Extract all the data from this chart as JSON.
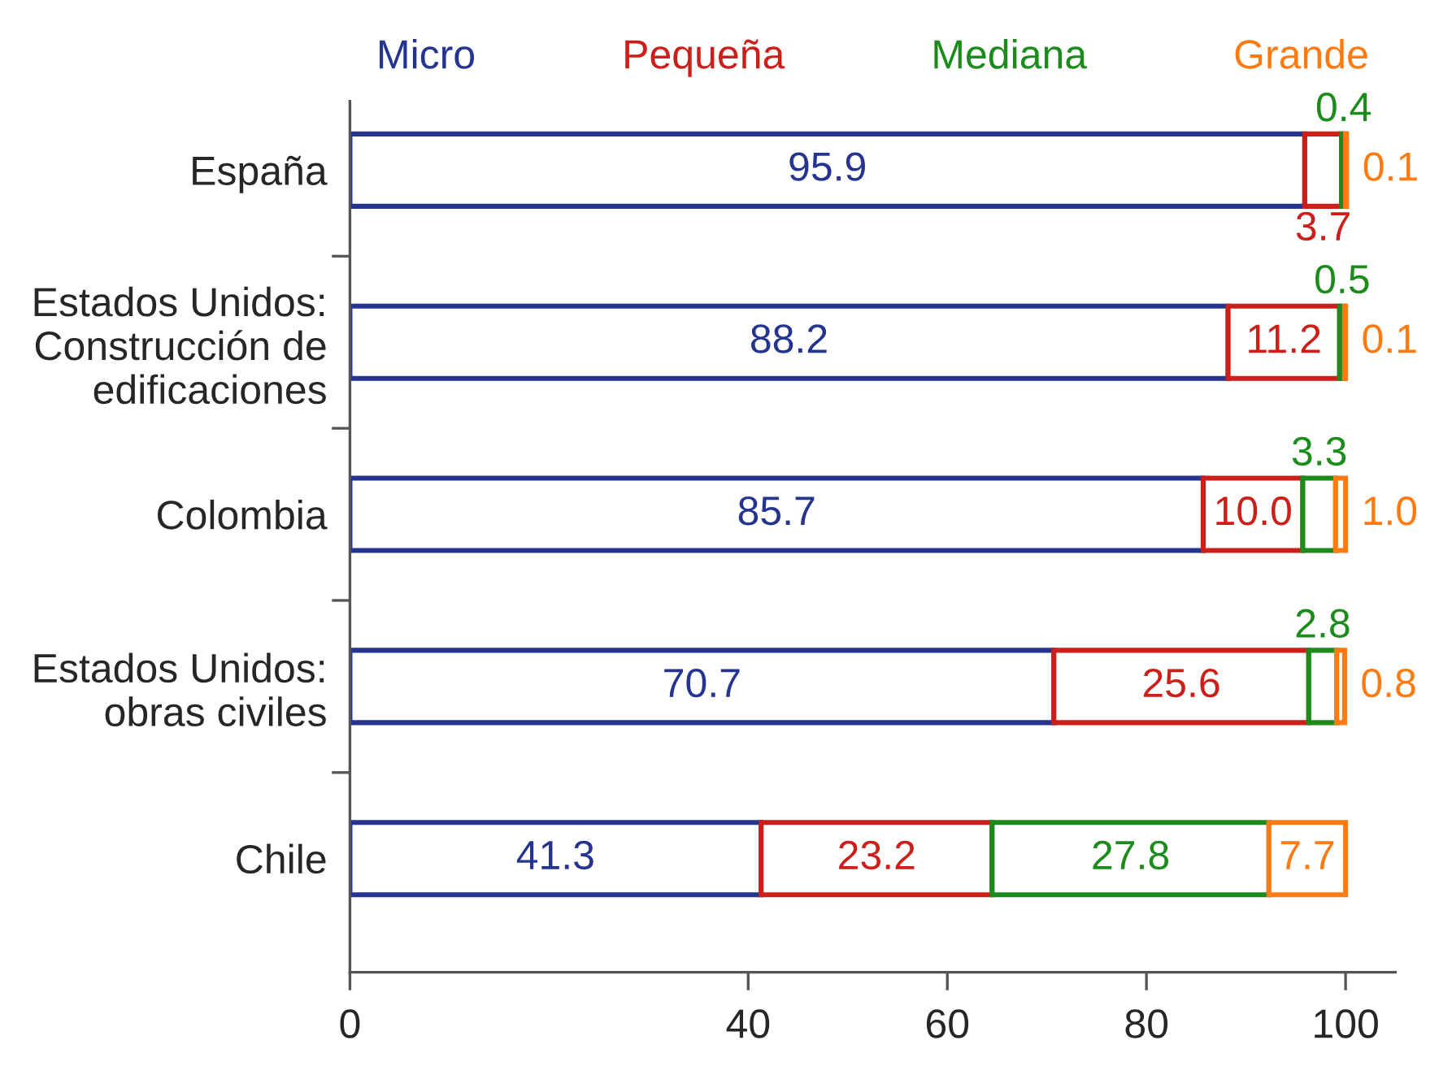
{
  "chart_data": {
    "type": "bar",
    "orientation": "horizontal",
    "stacked": true,
    "categories": [
      "España",
      "Estados Unidos:\nConstrucción de\nedificaciones",
      "Colombia",
      "Estados Unidos:\nobras civiles",
      "Chile"
    ],
    "series": [
      {
        "name": "Micro",
        "color": "#25358f",
        "values": [
          95.9,
          88.2,
          85.7,
          70.7,
          41.3
        ],
        "value_labels": [
          "95.9",
          "88.2",
          "85.7",
          "70.7",
          "41.3"
        ]
      },
      {
        "name": "Pequeña",
        "color": "#cc1f1a",
        "values": [
          3.7,
          11.2,
          10.0,
          25.6,
          23.2
        ],
        "value_labels": [
          "3.7",
          "11.2",
          "10.0",
          "25.6",
          "23.2"
        ]
      },
      {
        "name": "Mediana",
        "color": "#1b8c1b",
        "values": [
          0.4,
          0.5,
          3.3,
          2.8,
          27.8
        ],
        "value_labels": [
          "0.4",
          "0.5",
          "3.3",
          "2.8",
          "27.8"
        ]
      },
      {
        "name": "Grande",
        "color": "#ff7b12",
        "values": [
          0.1,
          0.1,
          1.0,
          0.8,
          7.7
        ],
        "value_labels": [
          "0.1",
          "0.1",
          "1.0",
          "0.8",
          "7.7"
        ]
      }
    ],
    "xlim": [
      0,
      105
    ],
    "xticks": [
      0,
      40,
      60,
      80,
      100
    ],
    "legend": "top"
  }
}
